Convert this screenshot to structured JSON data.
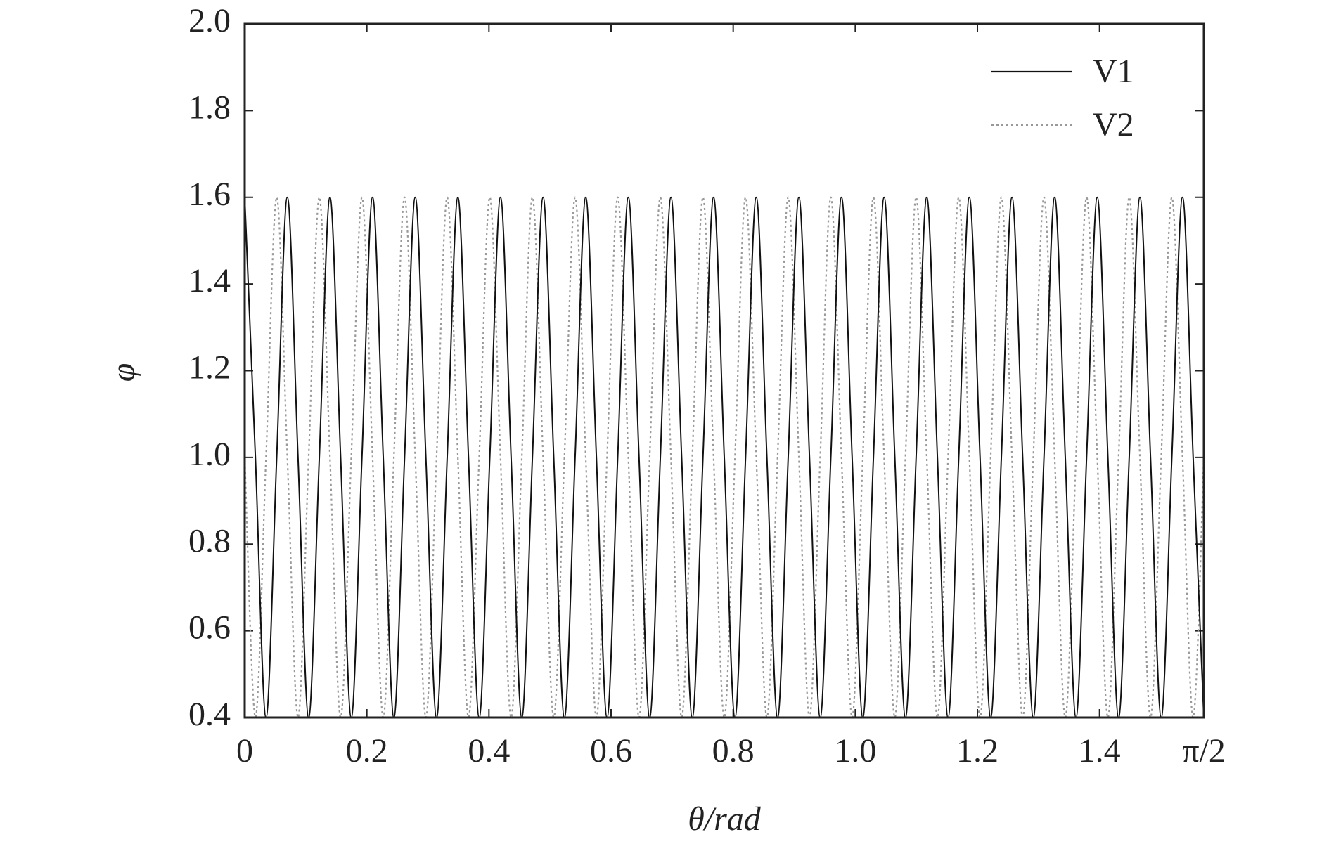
{
  "chart_data": {
    "type": "line",
    "x_label": "θ/rad",
    "y_label": "φ",
    "xlim": [
      0,
      1.5708
    ],
    "ylim": [
      0.4,
      2.0
    ],
    "xticks": [
      0,
      0.2,
      0.4,
      0.6,
      0.8,
      {
        "value": 1,
        "label": "1.0"
      },
      1.2,
      1.4,
      {
        "value": 1.5708,
        "label": "π/2"
      }
    ],
    "yticks": [
      0.4,
      0.6,
      0.8,
      {
        "value": 1,
        "label": "1.0"
      },
      1.2,
      1.4,
      1.6,
      1.8,
      {
        "value": 2,
        "label": "2.0"
      }
    ],
    "legend": "upper right",
    "x": [
      0,
      0.0175,
      0.0349,
      0.0524,
      0.0698,
      0.0873,
      0.1047,
      0.1222,
      0.1396,
      0.1571,
      0.1745,
      0.192,
      0.2094,
      0.2269,
      0.2443,
      0.2618,
      0.2793,
      0.2967,
      0.3142,
      0.3316,
      0.3491,
      0.3665,
      0.384,
      0.4014,
      0.4189,
      0.4363,
      0.4538,
      0.4712,
      0.4887,
      0.5061,
      0.5236,
      0.5411,
      0.5585,
      0.576,
      0.5934,
      0.6109,
      0.6283,
      0.6458,
      0.6632,
      0.6807,
      0.6981,
      0.7156,
      0.733,
      0.7505,
      0.7679,
      0.7854,
      0.8029,
      0.8203,
      0.8378,
      0.8552,
      0.8727,
      0.8901,
      0.9076,
      0.925,
      0.9425,
      0.9599,
      0.9774,
      0.9948,
      1.0123,
      1.0297,
      1.0472,
      1.0647,
      1.0821,
      1.0996,
      1.117,
      1.1345,
      1.1519,
      1.1694,
      1.1868,
      1.2043,
      1.2217,
      1.2392,
      1.2566,
      1.2741,
      1.2915,
      1.309,
      1.3265,
      1.3439,
      1.3614,
      1.3788,
      1.3963,
      1.4137,
      1.4312,
      1.4486,
      1.4661,
      1.4835,
      1.501,
      1.5184,
      1.5359,
      1.5533,
      1.5708
    ],
    "series": [
      {
        "name": "V1",
        "color": "#111111",
        "dash": "solid",
        "values": [
          1.6,
          1.0,
          0.4,
          1.0,
          1.6,
          1.0,
          0.4,
          1.0,
          1.6,
          1.0,
          0.4,
          1.0,
          1.6,
          1.0,
          0.4,
          1.0,
          1.6,
          1.0,
          0.4,
          1.0,
          1.6,
          1.0,
          0.4,
          1.0,
          1.6,
          1.0,
          0.4,
          1.0,
          1.6,
          1.0,
          0.4,
          1.0,
          1.6,
          1.0,
          0.4,
          1.0,
          1.6,
          1.0,
          0.4,
          1.0,
          1.6,
          1.0,
          0.4,
          1.0,
          1.6,
          1.0,
          0.4,
          1.0,
          1.6,
          1.0,
          0.4,
          1.0,
          1.6,
          1.0,
          0.4,
          1.0,
          1.6,
          1.0,
          0.4,
          1.0,
          1.6,
          1.0,
          0.4,
          1.0,
          1.6,
          1.0,
          0.4,
          1.0,
          1.6,
          1.0,
          0.4,
          1.0,
          1.6,
          1.0,
          0.4,
          1.0,
          1.6,
          1.0,
          0.4,
          1.0,
          1.6,
          1.0,
          0.4,
          1.0,
          1.6,
          1.0,
          0.4,
          1.0,
          1.6,
          1.0,
          0.4
        ]
      },
      {
        "name": "V2",
        "color": "#999999",
        "dash": "dotted",
        "values": [
          1.0,
          0.4,
          1.0,
          1.6,
          1.0,
          0.4,
          1.0,
          1.6,
          1.0,
          0.4,
          1.0,
          1.6,
          1.0,
          0.4,
          1.0,
          1.6,
          1.0,
          0.4,
          1.0,
          1.6,
          1.0,
          0.4,
          1.0,
          1.6,
          1.0,
          0.4,
          1.0,
          1.6,
          1.0,
          0.4,
          1.0,
          1.6,
          1.0,
          0.4,
          1.0,
          1.6,
          1.0,
          0.4,
          1.0,
          1.6,
          1.0,
          0.4,
          1.0,
          1.6,
          1.0,
          0.4,
          1.0,
          1.6,
          1.0,
          0.4,
          1.0,
          1.6,
          1.0,
          0.4,
          1.0,
          1.6,
          1.0,
          0.4,
          1.0,
          1.6,
          1.0,
          0.4,
          1.0,
          1.6,
          1.0,
          0.4,
          1.0,
          1.6,
          1.0,
          0.4,
          1.0,
          1.6,
          1.0,
          0.4,
          1.0,
          1.6,
          1.0,
          0.4,
          1.0,
          1.6,
          1.0,
          0.4,
          1.0,
          1.6,
          1.0,
          0.4,
          1.0,
          1.6,
          1.0,
          0.4,
          1.0
        ]
      }
    ]
  }
}
